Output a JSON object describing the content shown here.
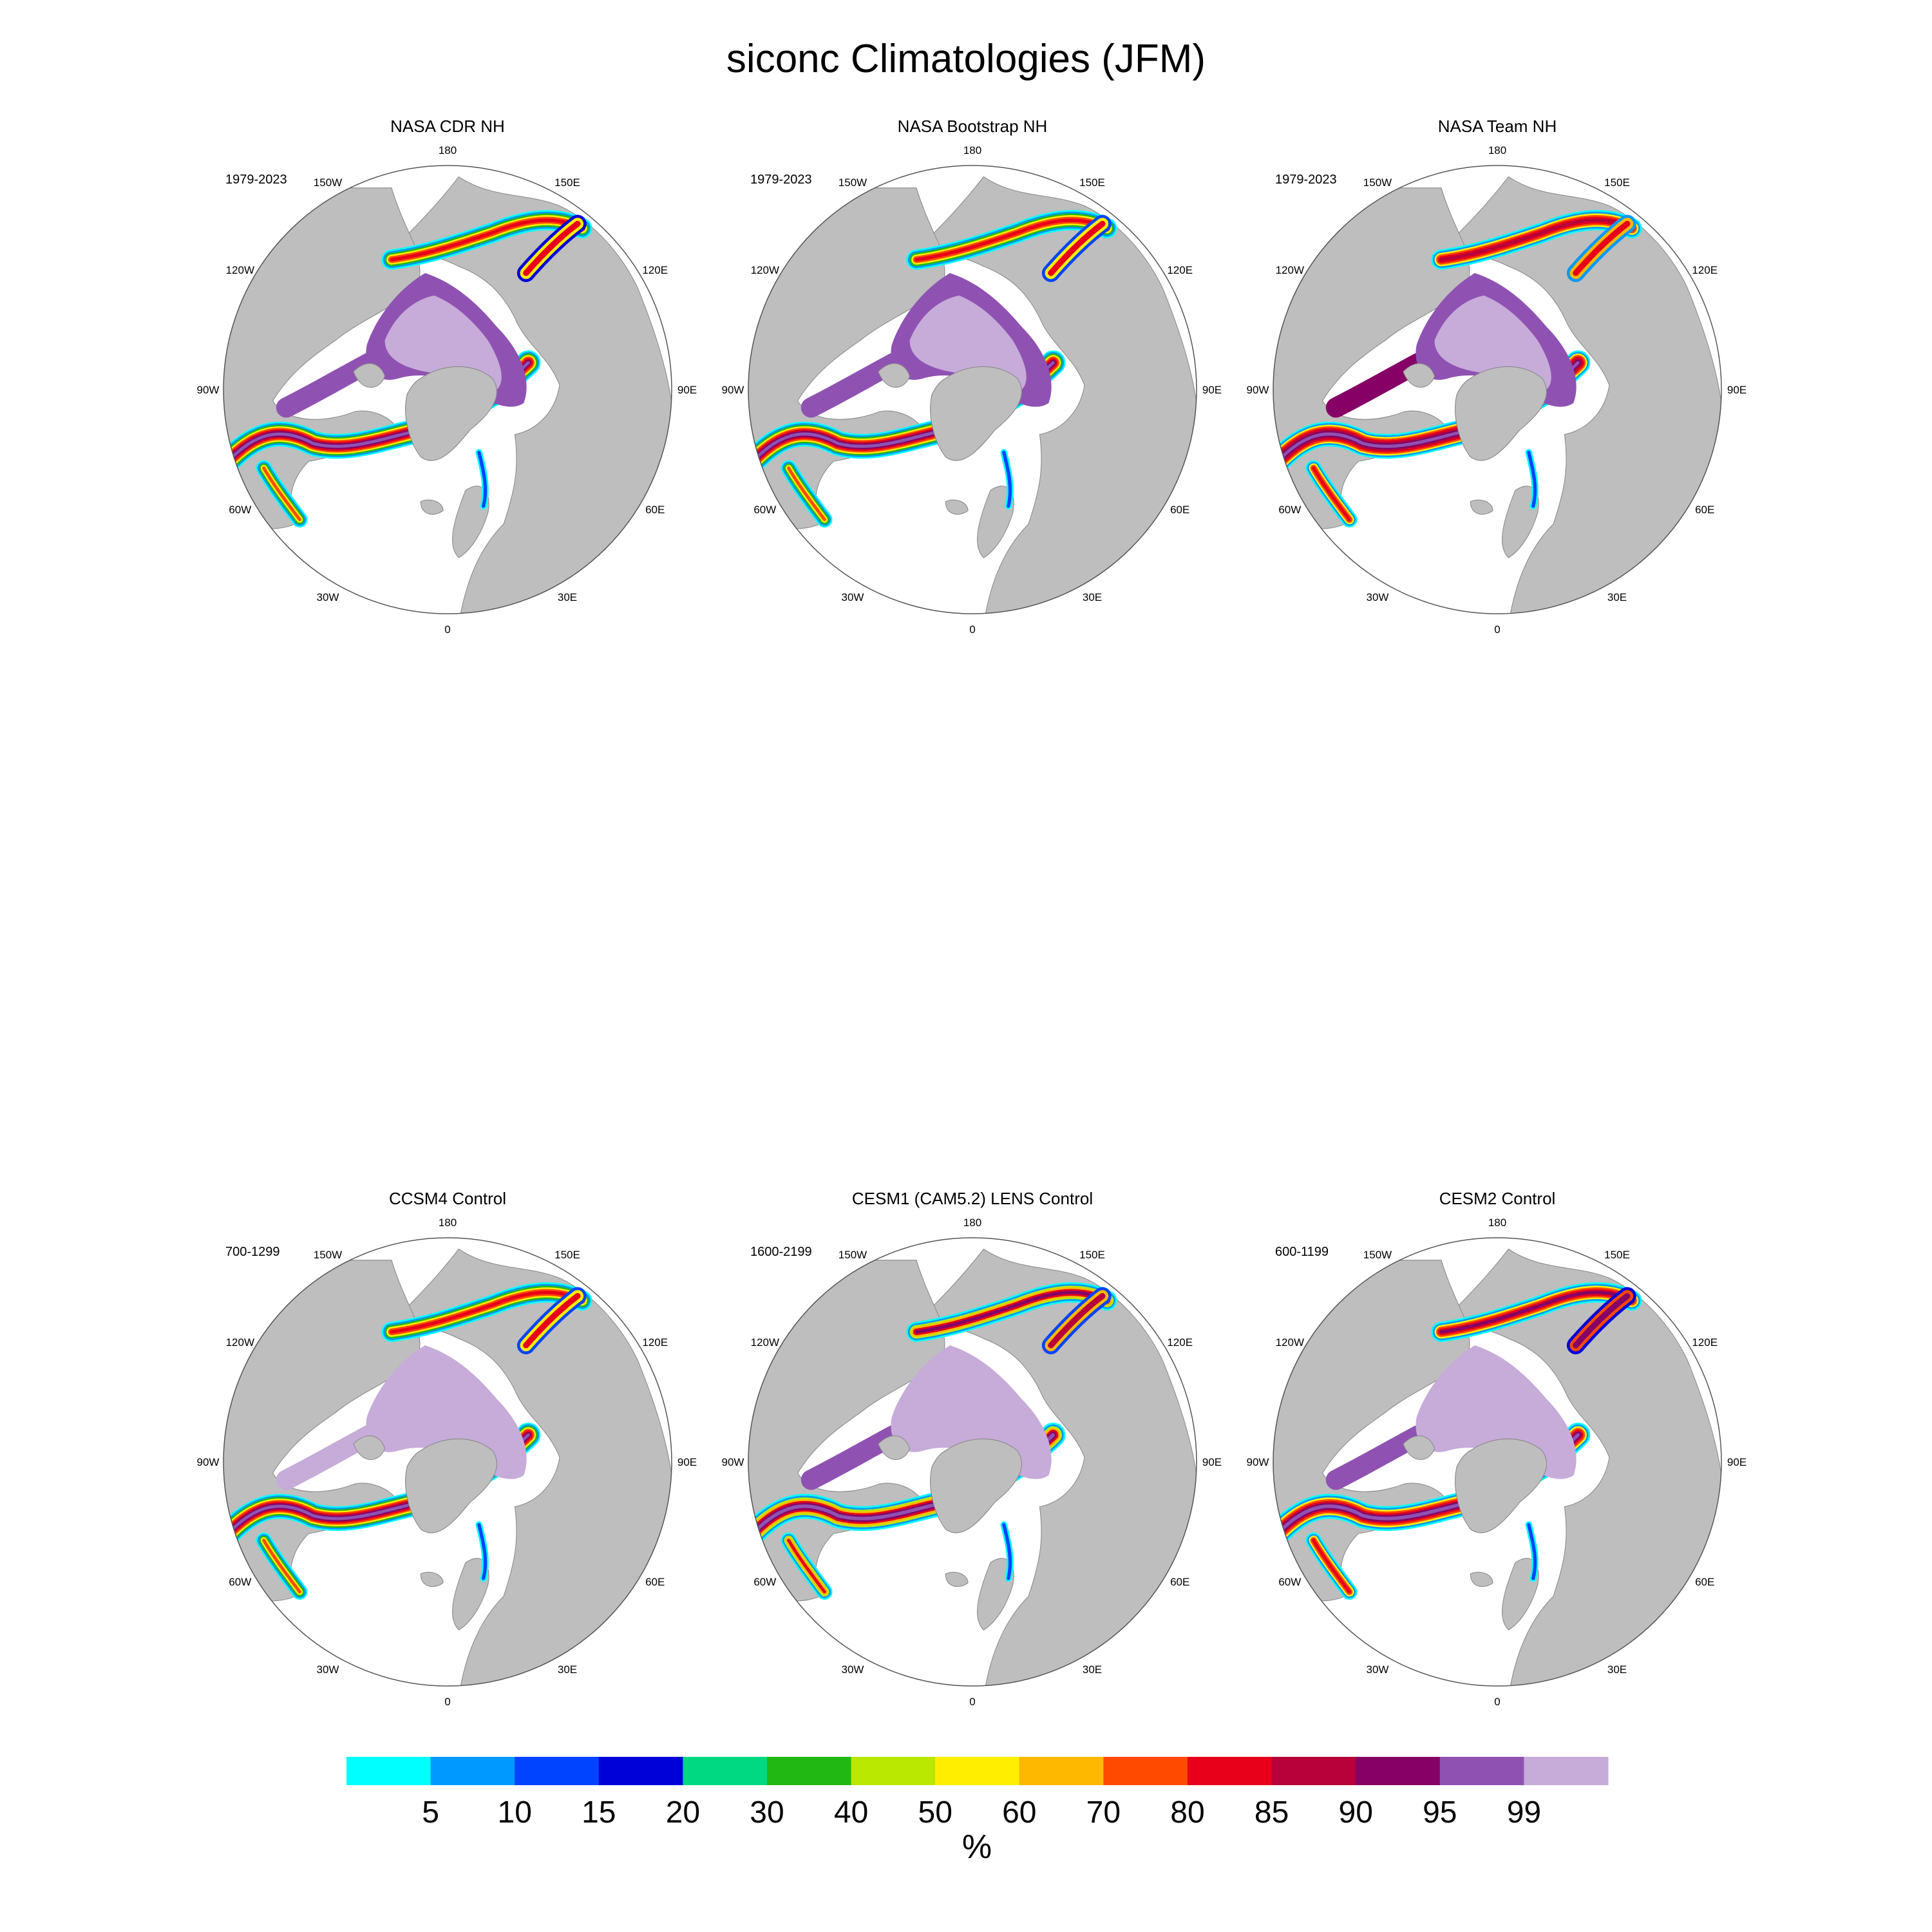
{
  "title": "siconc Climatologies (JFM)",
  "lon_labels": [
    "180",
    "150E",
    "120E",
    "90E",
    "60E",
    "30E",
    "0",
    "30W",
    "60W",
    "90W",
    "120W",
    "150W"
  ],
  "panels": [
    {
      "title": "NASA CDR NH",
      "period": "1979-2023",
      "style": "cdr"
    },
    {
      "title": "NASA Bootstrap NH",
      "period": "1979-2023",
      "style": "bootstrap"
    },
    {
      "title": "NASA Team NH",
      "period": "1979-2023",
      "style": "team"
    },
    {
      "title": "CCSM4 Control",
      "period": "700-1299",
      "style": "ccsm4"
    },
    {
      "title": "CESM1 (CAM5.2) LENS Control",
      "period": "1600-2199",
      "style": "cesm1"
    },
    {
      "title": "CESM2 Control",
      "period": "600-1199",
      "style": "cesm2"
    }
  ],
  "colorbar": {
    "units": "%",
    "labels": [
      "5",
      "10",
      "15",
      "20",
      "30",
      "40",
      "50",
      "60",
      "70",
      "80",
      "85",
      "90",
      "95",
      "99"
    ],
    "colors": [
      "#00ffff",
      "#0099ff",
      "#0044ff",
      "#0000d9",
      "#00d982",
      "#22b814",
      "#bbe800",
      "#ffee00",
      "#ffb800",
      "#ff4a00",
      "#e8001a",
      "#b8003a",
      "#860066",
      "#8f52b2",
      "#c7abd9"
    ]
  },
  "land_color": "#bebebe",
  "ocean_color": "#ffffff"
}
